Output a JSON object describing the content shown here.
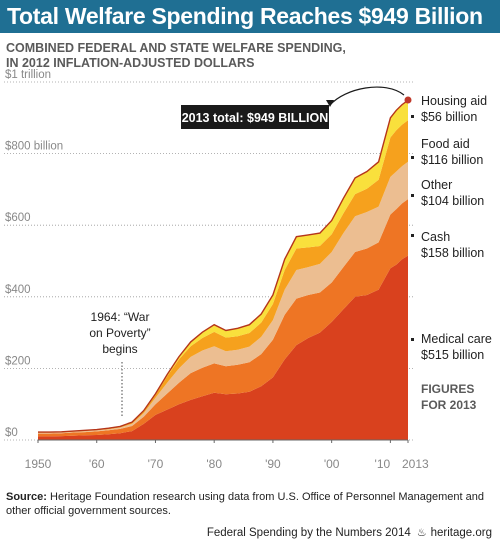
{
  "header": {
    "title": "Total Welfare Spending Reaches $949 Billion",
    "subtitle_line1": "COMBINED FEDERAL AND STATE WELFARE SPENDING,",
    "subtitle_line2": "IN 2012 INFLATION-ADJUSTED DOLLARS"
  },
  "chart_data": {
    "type": "area",
    "stacked": true,
    "title": "Total Welfare Spending Reaches $949 Billion",
    "ylim": [
      0,
      1000
    ],
    "xlim": [
      1950,
      2013
    ],
    "grid": "horizontal dotted",
    "y_ticks": [
      {
        "value": 0,
        "label": "$0"
      },
      {
        "value": 200,
        "label": "$200"
      },
      {
        "value": 400,
        "label": "$400"
      },
      {
        "value": 600,
        "label": "$600"
      },
      {
        "value": 800,
        "label": "$800 billion"
      },
      {
        "value": 1000,
        "label": "$1 trillion"
      }
    ],
    "x_ticks": [
      {
        "value": 1950,
        "label": "1950"
      },
      {
        "value": 1960,
        "label": "'60"
      },
      {
        "value": 1970,
        "label": "'70"
      },
      {
        "value": 1980,
        "label": "'80"
      },
      {
        "value": 1990,
        "label": "'90"
      },
      {
        "value": 2000,
        "label": "'00"
      },
      {
        "value": 2010,
        "label": "'10"
      },
      {
        "value": 2013,
        "label": "2013"
      }
    ],
    "x": [
      1950,
      1952,
      1954,
      1956,
      1958,
      1960,
      1962,
      1964,
      1966,
      1968,
      1970,
      1972,
      1974,
      1976,
      1978,
      1980,
      1982,
      1984,
      1986,
      1988,
      1990,
      1992,
      1994,
      1996,
      1998,
      2000,
      2002,
      2004,
      2006,
      2008,
      2010,
      2011,
      2012,
      2013
    ],
    "series": [
      {
        "name": "Medical care",
        "color": "#d9411e",
        "values": [
          10,
          10,
          11,
          12,
          13,
          14,
          16,
          19,
          25,
          45,
          70,
          85,
          100,
          112,
          122,
          132,
          128,
          130,
          135,
          150,
          175,
          225,
          265,
          285,
          300,
          330,
          365,
          400,
          405,
          420,
          480,
          490,
          505,
          515
        ]
      },
      {
        "name": "Cash",
        "color": "#ee7524",
        "values": [
          8,
          8,
          8,
          9,
          9,
          10,
          11,
          12,
          14,
          20,
          30,
          45,
          60,
          75,
          80,
          82,
          78,
          80,
          82,
          90,
          105,
          125,
          130,
          120,
          112,
          110,
          118,
          125,
          130,
          132,
          150,
          155,
          156,
          158
        ]
      },
      {
        "name": "Other",
        "color": "#ecbe91",
        "values": [
          2,
          2,
          2,
          2,
          3,
          3,
          3,
          4,
          6,
          10,
          18,
          30,
          40,
          45,
          48,
          48,
          42,
          42,
          44,
          48,
          55,
          70,
          80,
          78,
          80,
          85,
          95,
          100,
          102,
          100,
          105,
          105,
          104,
          104
        ]
      },
      {
        "name": "Food aid",
        "color": "#f6a11d",
        "values": [
          2,
          2,
          2,
          2,
          2,
          2,
          3,
          3,
          4,
          5,
          8,
          18,
          25,
          30,
          35,
          40,
          38,
          38,
          38,
          40,
          45,
          55,
          60,
          55,
          50,
          50,
          55,
          62,
          65,
          75,
          110,
          115,
          116,
          116
        ]
      },
      {
        "name": "Housing aid",
        "color": "#f9e03c",
        "values": [
          0,
          0,
          0,
          0,
          0,
          0,
          0,
          0,
          1,
          2,
          3,
          5,
          8,
          12,
          16,
          20,
          20,
          22,
          23,
          24,
          25,
          30,
          33,
          35,
          36,
          38,
          42,
          45,
          48,
          50,
          55,
          56,
          56,
          56
        ]
      }
    ],
    "series_labels": [
      {
        "name": "Housing aid",
        "amount": "$56 billion"
      },
      {
        "name": "Food aid",
        "amount": "$116 billion"
      },
      {
        "name": "Other",
        "amount": "$104 billion"
      },
      {
        "name": "Cash",
        "amount": "$158 billion"
      },
      {
        "name": "Medical care",
        "amount": "$515 billion"
      }
    ],
    "annotations": {
      "total_callout": "2013 total: $949 BILLION",
      "war_on_poverty_line1": "1964: “War",
      "war_on_poverty_line2": "on Poverty”",
      "war_on_poverty_line3": "begins",
      "figures_line1": "FIGURES",
      "figures_line2": "FOR 2013"
    },
    "colors": {
      "header_bg": "#1f6f93",
      "callout_bg": "#1a1a1a",
      "end_dot": "#c0392b",
      "axis_text": "#888888"
    }
  },
  "source": {
    "label": "Source:",
    "text": "Heritage Foundation research using data from U.S. Office of Personnel Management and other official government sources."
  },
  "footer": {
    "left": "Federal Spending by the Numbers 2014",
    "bell_icon": "bell-icon",
    "right": "heritage.org"
  }
}
